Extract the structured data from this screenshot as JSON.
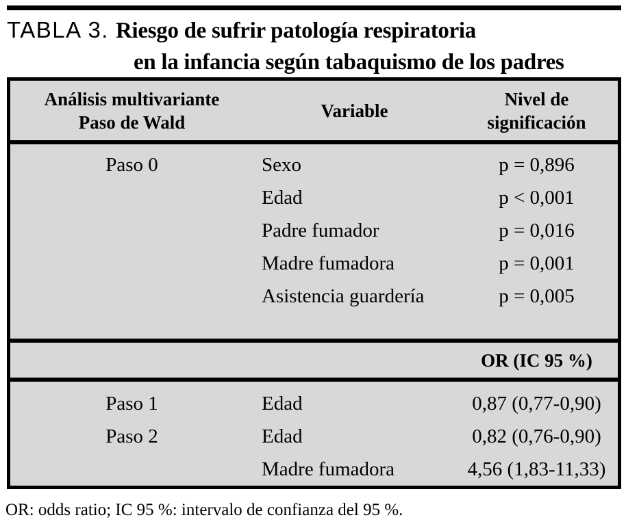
{
  "title": {
    "label": "TABLA 3.",
    "line1": "Riesgo de sufrir patología respiratoria",
    "line2": "en la infancia según tabaquismo de los padres"
  },
  "table": {
    "header": {
      "col1_line1": "Análisis multivariante",
      "col1_line2": "Paso de Wald",
      "col2": "Variable",
      "col3_line1": "Nivel de",
      "col3_line2": "significación"
    },
    "section1": {
      "rows": [
        {
          "paso": "Paso 0",
          "variable": "Sexo",
          "value": "p = 0,896"
        },
        {
          "paso": "",
          "variable": "Edad",
          "value": "p < 0,001"
        },
        {
          "paso": "",
          "variable": "Padre fumador",
          "value": "p = 0,016"
        },
        {
          "paso": "",
          "variable": "Madre fumadora",
          "value": "p = 0,001"
        },
        {
          "paso": "",
          "variable": "Asistencia guardería",
          "value": "p = 0,005"
        }
      ]
    },
    "or_header": "OR (IC 95 %)",
    "section2": {
      "rows": [
        {
          "paso": "Paso 1",
          "variable": "Edad",
          "value": "0,87 (0,77-0,90)"
        },
        {
          "paso": "Paso 2",
          "variable": "Edad",
          "value": "0,82 (0,76-0,90)"
        },
        {
          "paso": "",
          "variable": "Madre fumadora",
          "value": "4,56 (1,83-11,33)"
        }
      ]
    }
  },
  "footnote": "OR: odds ratio; IC 95 %: intervalo de confianza del 95 %.",
  "colors": {
    "table_bg": "#d8d8d8",
    "border": "#000000",
    "text": "#000000"
  }
}
